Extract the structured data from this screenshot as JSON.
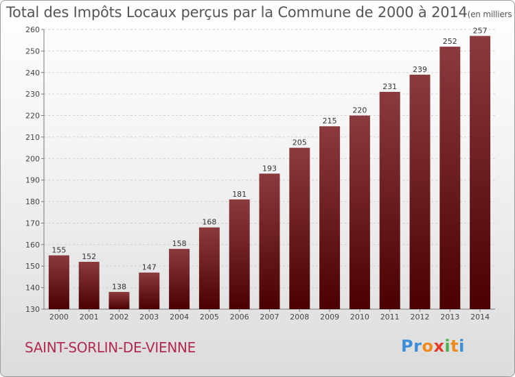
{
  "chart_data": {
    "type": "bar",
    "title": "Total des Impôts Locaux perçus par la Commune de 2000 à 2014",
    "unit": "(en milliers d'€)",
    "categories": [
      "2000",
      "2001",
      "2002",
      "2003",
      "2004",
      "2005",
      "2006",
      "2007",
      "2008",
      "2009",
      "2010",
      "2011",
      "2012",
      "2013",
      "2014"
    ],
    "values": [
      155,
      152,
      138,
      147,
      158,
      168,
      181,
      193,
      205,
      215,
      220,
      231,
      239,
      252,
      257
    ],
    "ylim": [
      130,
      260
    ],
    "yticks": [
      130,
      140,
      150,
      160,
      170,
      180,
      190,
      200,
      210,
      220,
      230,
      240,
      250,
      260
    ],
    "xlabel": "",
    "ylabel": "",
    "grid": true
  },
  "commune": "SAINT-SORLIN-DE-VIENNE",
  "logo": {
    "letters": [
      "P",
      "r",
      "o",
      "x",
      "i",
      "t",
      "i"
    ],
    "colors": [
      "#3a8fd6",
      "#3a8fd6",
      "#f08a1c",
      "#e23a2a",
      "#4caf50",
      "#f08a1c",
      "#3a8fd6"
    ]
  },
  "colors": {
    "bar_top": "#8b3a3e",
    "bar_bottom": "#4a0000",
    "grid": "#cfcfcf",
    "commune": "#b22a4f"
  }
}
